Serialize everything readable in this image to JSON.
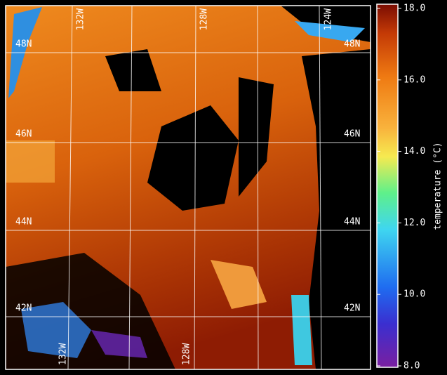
{
  "map": {
    "lat_labels": [
      "48N",
      "46N",
      "44N",
      "42N"
    ],
    "lon_labels_top": [
      "132W",
      "128W",
      "124W"
    ],
    "lon_labels_bottom": [
      "132W",
      "128W"
    ]
  },
  "colorbar": {
    "title": "temperature (°C)",
    "lim": [
      8,
      18
    ],
    "ticks": [
      {
        "value": 8,
        "label": "8.0"
      },
      {
        "value": 10,
        "label": "10.0"
      },
      {
        "value": 12,
        "label": "12.0"
      },
      {
        "value": 14,
        "label": "14.0"
      },
      {
        "value": 16,
        "label": "16.0"
      },
      {
        "value": 18,
        "label": "18.0"
      }
    ]
  }
}
